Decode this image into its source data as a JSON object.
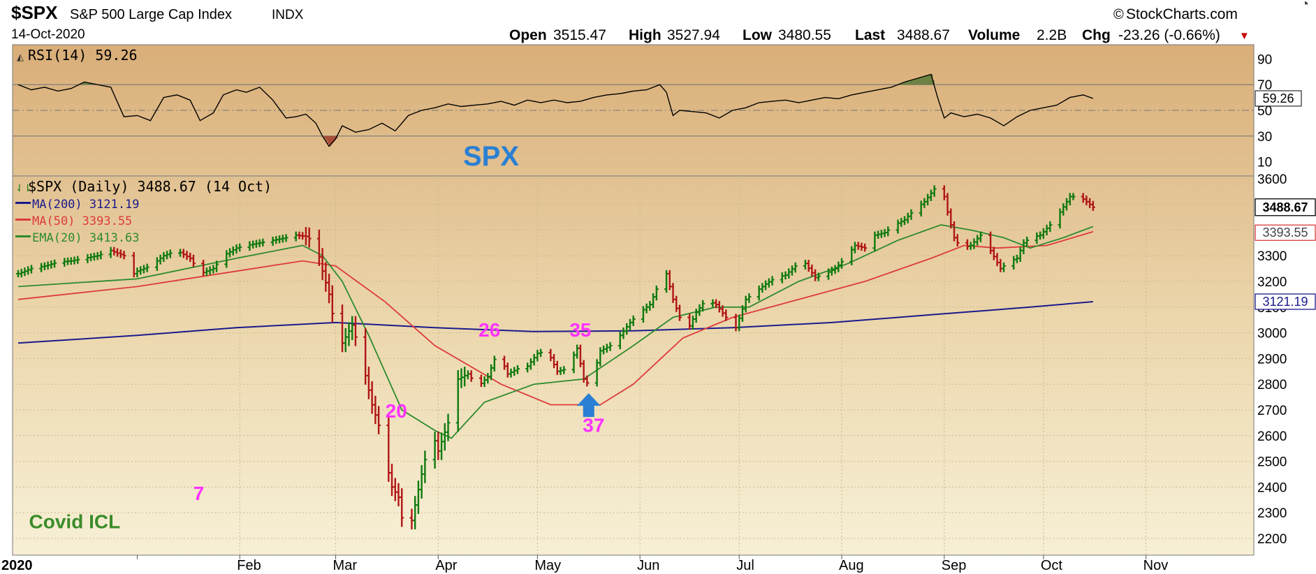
{
  "header": {
    "symbol": "$SPX",
    "name": "S&P 500 Large Cap Index",
    "exchange": "INDX",
    "date": "14-Oct-2020",
    "brand": "StockCharts.com",
    "open_label": "Open",
    "open": "3515.47",
    "high_label": "High",
    "high": "3527.94",
    "low_label": "Low",
    "low": "3480.55",
    "last_label": "Last",
    "last": "3488.67",
    "volume_label": "Volume",
    "volume": "2.2B",
    "chg_label": "Chg",
    "chg": "-23.26 (-0.66%)"
  },
  "rsi_panel": {
    "legend": "RSI(14) 59.26",
    "value_badge": "59.26",
    "watermark": "SPX",
    "ticks": [
      "90",
      "70",
      "50",
      "30",
      "10"
    ]
  },
  "price_panel": {
    "legend": {
      "price": "$SPX (Daily) 3488.67 (14 Oct)",
      "ma200": "MA(200) 3121.19",
      "ma50": "MA(50) 3393.55",
      "ema20": "EMA(20) 3413.63"
    },
    "badges": {
      "last": "3488.67",
      "ma50": "3393.55",
      "ma200": "3121.19"
    },
    "annotations": [
      {
        "text": "7",
        "x": 18.6,
        "y": 2350
      },
      {
        "text": "20",
        "x": 78.3,
        "y": 2670
      },
      {
        "text": "26",
        "x": 106.5,
        "y": 2985
      },
      {
        "text": "35",
        "x": 134.0,
        "y": 2985
      },
      {
        "text": "37",
        "x": 138.0,
        "y": 2615
      },
      {
        "text": "Covid ICL",
        "x": -38,
        "y": 2240
      }
    ]
  },
  "colors": {
    "ma200": "#1a1a8c",
    "ma50": "#dd3b3b",
    "ema20": "#2e8b2e",
    "bar_green": "#0f7a0f",
    "bar_red": "#b01515",
    "annotation": "#ff33ff",
    "arrow": "#2a7fd4",
    "covid_label": "#3a8c2a",
    "watermark": "#2a7fd4",
    "chg_down": "#cc0000"
  },
  "chart_data": {
    "type": "line",
    "title": "$SPX S&P 500 Large Cap Index",
    "x_axis": {
      "unit": "calendar days from 1-Jan-2020",
      "tick_labels": [
        "2020",
        "Feb",
        "Mar",
        "Apr",
        "May",
        "Jun",
        "Jul",
        "Aug",
        "Sep",
        "Oct",
        "Nov"
      ],
      "tick_days": [
        0,
        31,
        60,
        91,
        121,
        152,
        182,
        213,
        244,
        274,
        305
      ]
    },
    "y_axis": {
      "ticks": [
        2200,
        2300,
        2400,
        2500,
        2600,
        2700,
        2800,
        2900,
        3000,
        3100,
        3200,
        3300,
        3400,
        3500,
        3600
      ],
      "range": [
        2170,
        3620
      ],
      "grid": true
    },
    "price_series": {
      "name": "$SPX (Daily)",
      "x": [
        -36,
        -32,
        -28,
        -24,
        -20,
        -16,
        -12,
        -8,
        -4,
        -1,
        0,
        4,
        8,
        12,
        16,
        19,
        23,
        26,
        30,
        33,
        37,
        41,
        45,
        48,
        51,
        54,
        56,
        58,
        60,
        62,
        65,
        68,
        71,
        73,
        75,
        77,
        79,
        81,
        83,
        86,
        89,
        91,
        94,
        97,
        100,
        103,
        106,
        109,
        112,
        115,
        118,
        121,
        124,
        127,
        130,
        133,
        135,
        137,
        140,
        143,
        146,
        149,
        152,
        155,
        158,
        160,
        162,
        164,
        166,
        169,
        172,
        175,
        178,
        181,
        184,
        187,
        190,
        193,
        196,
        199,
        202,
        205,
        208,
        211,
        214,
        217,
        220,
        223,
        226,
        229,
        232,
        235,
        238,
        241,
        243,
        245,
        247,
        249,
        252,
        255,
        258,
        261,
        264,
        266,
        268,
        270,
        273,
        276,
        279,
        282,
        285,
        287,
        289
      ],
      "values": [
        3230,
        3250,
        3260,
        3275,
        3280,
        3290,
        3300,
        3320,
        3300,
        3230,
        3240,
        3260,
        3300,
        3320,
        3290,
        3230,
        3250,
        3300,
        3330,
        3340,
        3350,
        3360,
        3370,
        3380,
        3375,
        3350,
        3240,
        3150,
        3000,
        2960,
        3030,
        2890,
        2720,
        2640,
        2510,
        2400,
        2360,
        2200,
        2270,
        2450,
        2620,
        2540,
        2650,
        2820,
        2840,
        2790,
        2830,
        2930,
        2840,
        2860,
        2870,
        2920,
        2930,
        2850,
        2860,
        2940,
        2820,
        2790,
        2930,
        2950,
        2990,
        3040,
        3080,
        3110,
        3200,
        3230,
        3130,
        3060,
        3000,
        3080,
        3130,
        3110,
        3060,
        3020,
        3130,
        3160,
        3190,
        3215,
        3225,
        3260,
        3270,
        3215,
        3230,
        3250,
        3290,
        3340,
        3330,
        3380,
        3390,
        3420,
        3440,
        3480,
        3510,
        3560,
        3590,
        3470,
        3370,
        3330,
        3340,
        3380,
        3320,
        3250,
        3280,
        3290,
        3350,
        3370,
        3380,
        3420,
        3470,
        3530,
        3530,
        3510,
        3488.67
      ]
    },
    "ma200": {
      "name": "MA(200)",
      "x": [
        -36,
        0,
        30,
        60,
        90,
        120,
        150,
        180,
        210,
        240,
        270,
        289
      ],
      "values": [
        2960,
        2990,
        3020,
        3040,
        3020,
        3005,
        3008,
        3020,
        3040,
        3070,
        3100,
        3121.19
      ]
    },
    "ma50": {
      "name": "MA(50)",
      "x": [
        -36,
        0,
        30,
        50,
        60,
        75,
        90,
        110,
        125,
        140,
        150,
        165,
        180,
        200,
        220,
        240,
        250,
        260,
        275,
        289
      ],
      "values": [
        3130,
        3180,
        3240,
        3280,
        3260,
        3120,
        2950,
        2800,
        2720,
        2720,
        2800,
        2980,
        3060,
        3130,
        3200,
        3290,
        3340,
        3330,
        3340,
        3393.55
      ]
    },
    "ema20": {
      "name": "EMA(20)",
      "x": [
        -36,
        0,
        30,
        50,
        56,
        62,
        70,
        80,
        90,
        95,
        105,
        120,
        135,
        150,
        162,
        175,
        185,
        200,
        215,
        230,
        243,
        252,
        262,
        270,
        280,
        289
      ],
      "values": [
        3180,
        3210,
        3290,
        3340,
        3300,
        3200,
        2990,
        2700,
        2620,
        2590,
        2730,
        2800,
        2820,
        2950,
        3060,
        3100,
        3100,
        3200,
        3270,
        3360,
        3420,
        3400,
        3370,
        3330,
        3370,
        3413.63
      ]
    },
    "rsi": {
      "name": "RSI(14)",
      "range": [
        0,
        100
      ],
      "levels": [
        30,
        70
      ],
      "x": [
        -36,
        -32,
        -28,
        -24,
        -20,
        -16,
        -12,
        -8,
        -4,
        0,
        4,
        8,
        12,
        16,
        19,
        23,
        26,
        30,
        33,
        37,
        41,
        45,
        48,
        51,
        54,
        56,
        58,
        60,
        62,
        66,
        70,
        74,
        78,
        82,
        86,
        90,
        94,
        98,
        102,
        106,
        110,
        114,
        118,
        122,
        126,
        130,
        134,
        138,
        142,
        146,
        150,
        154,
        158,
        160,
        162,
        164,
        168,
        172,
        176,
        180,
        184,
        188,
        192,
        196,
        200,
        204,
        208,
        212,
        216,
        220,
        224,
        228,
        232,
        236,
        240,
        242,
        244,
        246,
        250,
        254,
        258,
        262,
        266,
        270,
        274,
        278,
        282,
        286,
        289
      ],
      "values": [
        70,
        66,
        68,
        65,
        67,
        72,
        70,
        68,
        45,
        46,
        42,
        60,
        62,
        58,
        42,
        48,
        62,
        66,
        64,
        68,
        58,
        44,
        45,
        47,
        40,
        30,
        22,
        28,
        38,
        33,
        35,
        40,
        34,
        46,
        50,
        52,
        55,
        53,
        54,
        55,
        57,
        54,
        58,
        56,
        58,
        56,
        57,
        60,
        62,
        63,
        65,
        66,
        70,
        64,
        46,
        50,
        49,
        48,
        44,
        50,
        52,
        56,
        57,
        58,
        56,
        58,
        60,
        59,
        62,
        64,
        66,
        68,
        72,
        75,
        78,
        60,
        44,
        48,
        45,
        47,
        44,
        38,
        45,
        50,
        52,
        54,
        60,
        62,
        59.26
      ]
    }
  }
}
